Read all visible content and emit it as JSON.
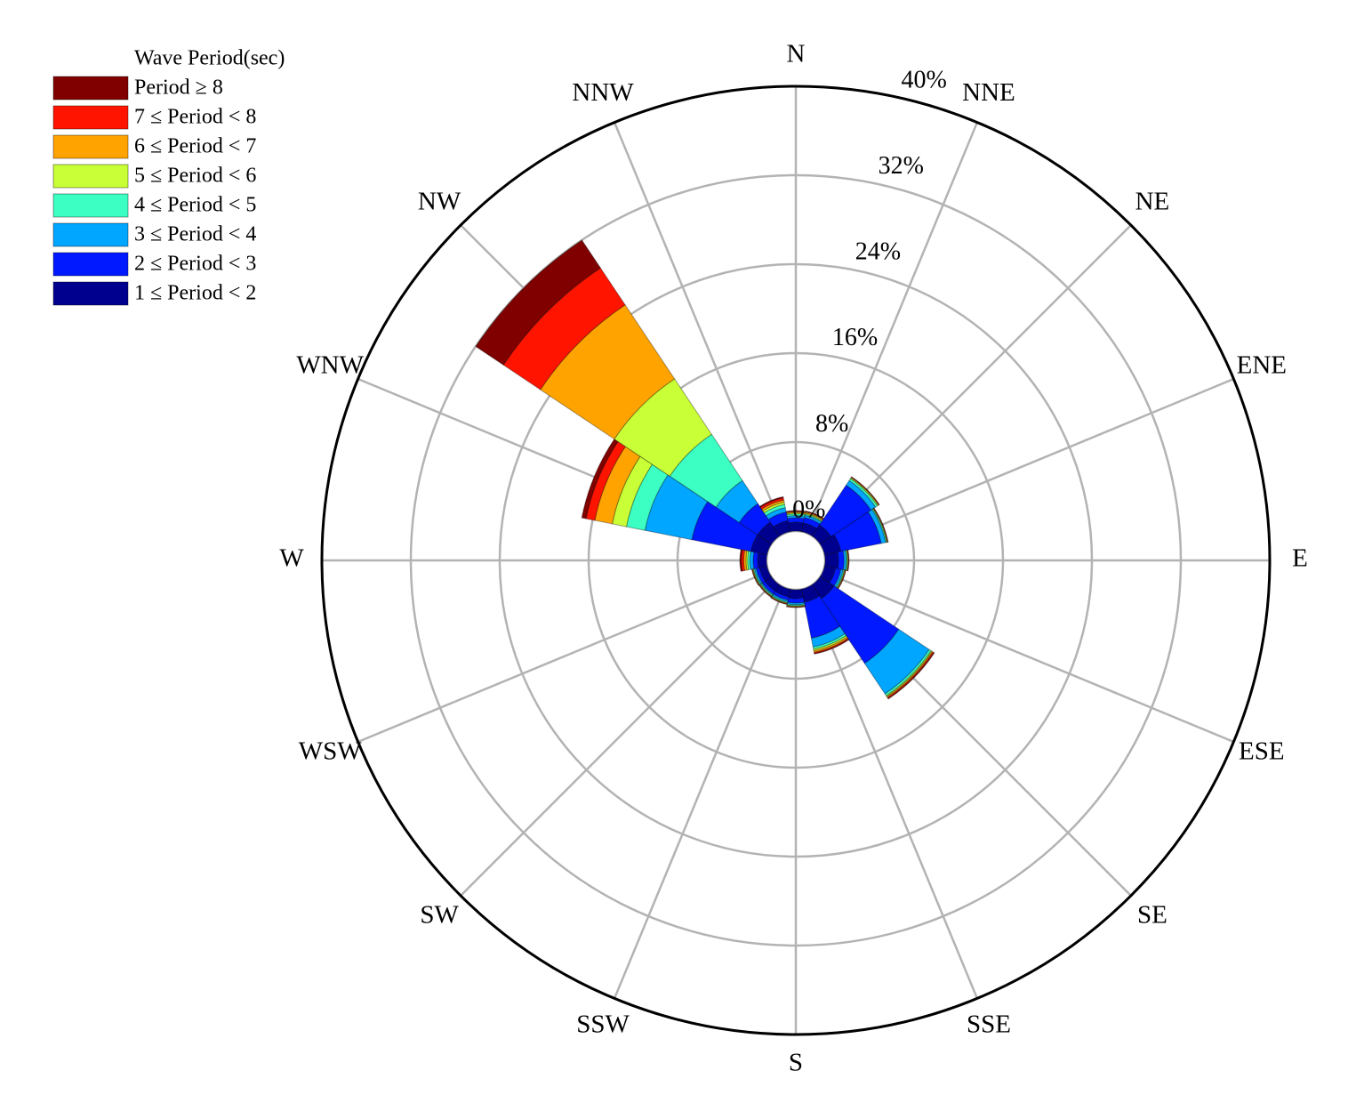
{
  "chart_data": {
    "type": "windrose",
    "legend_title": "Wave Period(sec)",
    "categories": [
      "N",
      "NNE",
      "NE",
      "ENE",
      "E",
      "ESE",
      "SE",
      "SSE",
      "S",
      "SSW",
      "SW",
      "WSW",
      "W",
      "WNW",
      "NW",
      "NNW"
    ],
    "rlim": [
      0,
      40
    ],
    "rticks": [
      {
        "value": 0,
        "label": "0%"
      },
      {
        "value": 8,
        "label": "8%"
      },
      {
        "value": 16,
        "label": "16%"
      },
      {
        "value": 24,
        "label": "24%"
      },
      {
        "value": 32,
        "label": "32%"
      },
      {
        "value": 40,
        "label": "40%"
      }
    ],
    "grid": true,
    "legend": "upper left",
    "series": [
      {
        "name": "1 ≤ Period < 2",
        "color": "#00008f",
        "values": [
          0.8,
          0.8,
          1.2,
          1.5,
          1.2,
          1.0,
          1.5,
          1.2,
          0.8,
          0.7,
          0.7,
          0.7,
          0.8,
          1.5,
          1.5,
          1.0
        ]
      },
      {
        "name": "2 ≤ Period < 3",
        "color": "#0019ff",
        "values": [
          0.4,
          0.5,
          4.3,
          3.7,
          0.5,
          0.5,
          7.0,
          3.3,
          0.4,
          0.3,
          0.3,
          0.3,
          0.4,
          5.4,
          2.0,
          0.8
        ]
      },
      {
        "name": "3 ≤ Period < 4",
        "color": "#00a6ff",
        "values": [
          0.2,
          0.2,
          0.5,
          0.4,
          0.2,
          0.2,
          3.3,
          0.8,
          0.15,
          0.15,
          0.1,
          0.15,
          0.3,
          4.3,
          2.5,
          0.4
        ]
      },
      {
        "name": "4 ≤ Period < 5",
        "color": "#3cffc3",
        "values": [
          0.15,
          0.1,
          0.2,
          0.1,
          0.1,
          0.1,
          0.2,
          0.2,
          0.1,
          0.1,
          0.1,
          0.1,
          0.2,
          1.7,
          5.0,
          0.3
        ]
      },
      {
        "name": "5 ≤ Period < 6",
        "color": "#c9ff36",
        "values": [
          0.1,
          0.1,
          0.1,
          0.05,
          0.05,
          0.05,
          0.1,
          0.15,
          0.05,
          0.05,
          0.05,
          0.05,
          0.15,
          1.3,
          6.0,
          0.2
        ]
      },
      {
        "name": "6 ≤ Period < 7",
        "color": "#ffa300",
        "values": [
          0.1,
          0.1,
          0.05,
          0.03,
          0.05,
          0.05,
          0.1,
          0.15,
          0.05,
          0.05,
          0.05,
          0.05,
          0.2,
          1.6,
          8.0,
          0.2
        ]
      },
      {
        "name": "7 ≤ Period < 8",
        "color": "#ff1400",
        "values": [
          0.05,
          0.05,
          0.03,
          0.03,
          0.03,
          0.03,
          0.1,
          0.1,
          0.03,
          0.03,
          0.03,
          0.03,
          0.2,
          0.8,
          4.0,
          0.2
        ]
      },
      {
        "name": "Period ≥ 8",
        "color": "#800000",
        "values": [
          0.05,
          0.05,
          0.02,
          0.02,
          0.02,
          0.02,
          0.05,
          0.05,
          0.02,
          0.02,
          0.02,
          0.02,
          0.15,
          0.4,
          3.0,
          0.1
        ]
      }
    ]
  }
}
